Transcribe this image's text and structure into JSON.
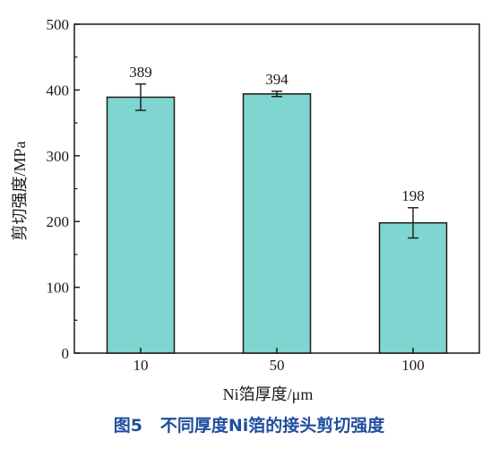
{
  "chart_data": {
    "type": "bar",
    "categories": [
      "10",
      "50",
      "100"
    ],
    "values": [
      389,
      394,
      198
    ],
    "errors": [
      20,
      4,
      23
    ],
    "data_labels": [
      "389",
      "394",
      "198"
    ],
    "xlabel": "Ni箔厚度/μm",
    "ylabel": "剪切强度/MPa",
    "ylim": [
      0,
      500
    ],
    "yticks": [
      0,
      100,
      200,
      300,
      400,
      500
    ],
    "grid": false,
    "legend": "none",
    "bar_color": "#7fd6d0",
    "bar_edge_color": "#1a1a1a"
  },
  "figure": {
    "caption": "图5   不同厚度Ni箔的接头剪切强度",
    "caption_color": "#1f4e9c"
  }
}
